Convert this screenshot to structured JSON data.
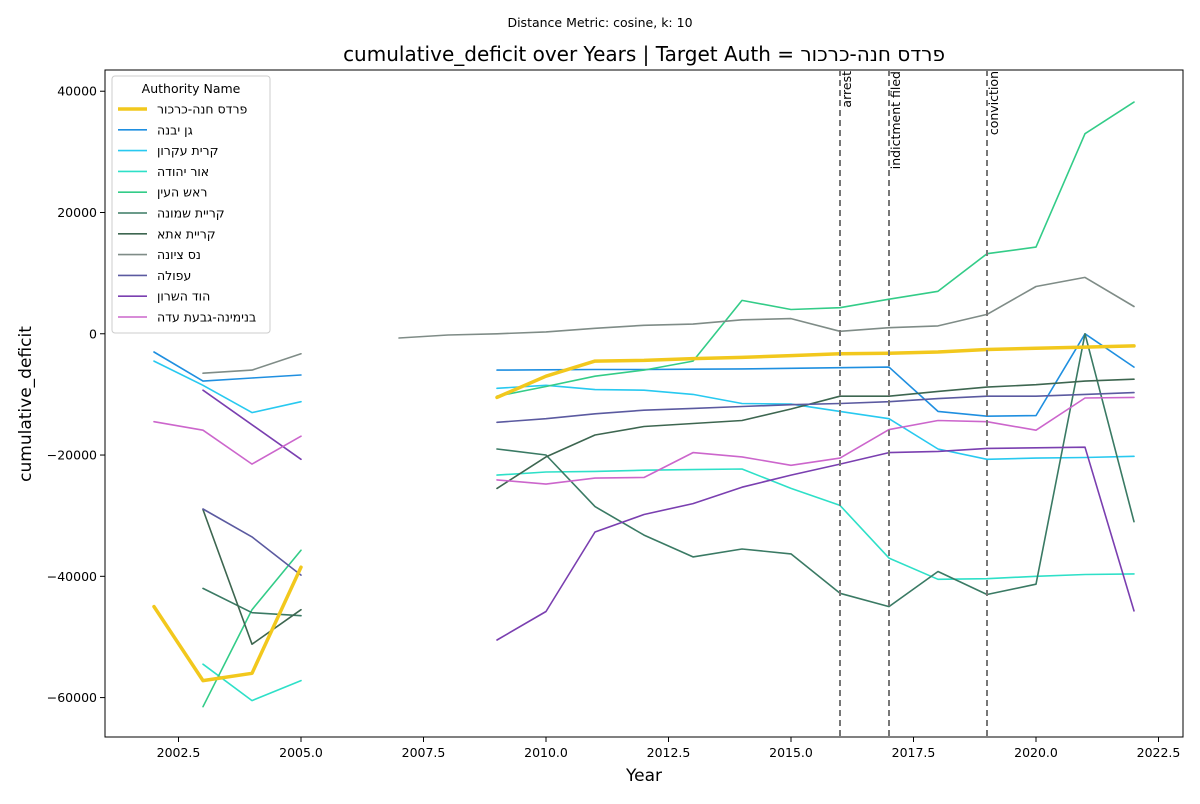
{
  "chart_data": {
    "type": "line",
    "suptitle": "Distance Metric: cosine, k: 10",
    "title": "cumulative_deficit over Years | Target Auth = פרדס חנה-כרכור",
    "xlabel": "Year",
    "ylabel": "cumulative_deficit",
    "xlim": [
      2001.0,
      2023.0
    ],
    "ylim": [
      -66500,
      43500
    ],
    "x_ticks": [
      2002.5,
      2005.0,
      2007.5,
      2010.0,
      2012.5,
      2015.0,
      2017.5,
      2020.0,
      2022.5
    ],
    "x_tick_labels": [
      "2002.5",
      "2005.0",
      "2007.5",
      "2010.0",
      "2012.5",
      "2015.0",
      "2017.5",
      "2020.0",
      "2022.5"
    ],
    "y_ticks": [
      -60000,
      -40000,
      -20000,
      0,
      20000,
      40000
    ],
    "y_tick_labels": [
      "−60000",
      "−40000",
      "−20000",
      "0",
      "20000",
      "40000"
    ],
    "grid": false,
    "legend": {
      "title": "Authority Name",
      "placement": "top-left"
    },
    "events": [
      {
        "x": 2016,
        "label": "arrest"
      },
      {
        "x": 2017,
        "label": "indictment filed"
      },
      {
        "x": 2019,
        "label": "conviction"
      }
    ],
    "series": [
      {
        "name": "פרדס חנה-כרכור",
        "color": "#f2c81d",
        "target": true,
        "segments": [
          [
            [
              2002,
              -45000
            ],
            [
              2003,
              -57200
            ],
            [
              2004,
              -56000
            ],
            [
              2005,
              -38500
            ]
          ],
          [
            [
              2009,
              -10500
            ],
            [
              2010,
              -7000
            ],
            [
              2011,
              -4500
            ],
            [
              2012,
              -4400
            ],
            [
              2013,
              -4100
            ],
            [
              2014,
              -3900
            ],
            [
              2015,
              -3600
            ],
            [
              2016,
              -3300
            ],
            [
              2017,
              -3200
            ],
            [
              2018,
              -3000
            ],
            [
              2019,
              -2600
            ],
            [
              2020,
              -2400
            ],
            [
              2021,
              -2200
            ],
            [
              2022,
              -2000
            ]
          ]
        ]
      },
      {
        "name": "גן יבנה",
        "color": "#1f8fe0",
        "segments": [
          [
            [
              2002,
              -3000
            ],
            [
              2003,
              -7800
            ],
            [
              2004,
              -7300
            ],
            [
              2005,
              -6800
            ]
          ],
          [
            [
              2009,
              -6000
            ],
            [
              2010,
              -5950
            ],
            [
              2011,
              -5900
            ],
            [
              2012,
              -5900
            ],
            [
              2013,
              -5850
            ],
            [
              2014,
              -5800
            ],
            [
              2015,
              -5700
            ],
            [
              2016,
              -5600
            ],
            [
              2017,
              -5500
            ],
            [
              2018,
              -12800
            ],
            [
              2019,
              -13600
            ],
            [
              2020,
              -13500
            ],
            [
              2021,
              0
            ],
            [
              2022,
              -5500
            ]
          ]
        ]
      },
      {
        "name": "קרית עקרון",
        "color": "#28c9f0",
        "segments": [
          [
            [
              2002,
              -4500
            ],
            [
              2003,
              -8500
            ],
            [
              2004,
              -13000
            ],
            [
              2005,
              -11200
            ]
          ],
          [
            [
              2009,
              -9000
            ],
            [
              2010,
              -8500
            ],
            [
              2011,
              -9200
            ],
            [
              2012,
              -9300
            ],
            [
              2013,
              -10000
            ],
            [
              2014,
              -11500
            ],
            [
              2015,
              -11600
            ],
            [
              2016,
              -12800
            ],
            [
              2017,
              -14000
            ],
            [
              2018,
              -19000
            ],
            [
              2019,
              -20700
            ],
            [
              2020,
              -20500
            ],
            [
              2021,
              -20400
            ],
            [
              2022,
              -20200
            ]
          ]
        ]
      },
      {
        "name": "אור יהודה",
        "color": "#2ee0c8",
        "segments": [
          [
            [
              2003,
              -54500
            ],
            [
              2004,
              -60500
            ],
            [
              2005,
              -57200
            ]
          ],
          [
            [
              2009,
              -23300
            ],
            [
              2010,
              -22800
            ],
            [
              2011,
              -22700
            ],
            [
              2012,
              -22500
            ],
            [
              2013,
              -22400
            ],
            [
              2014,
              -22300
            ],
            [
              2015,
              -25500
            ],
            [
              2016,
              -28300
            ],
            [
              2017,
              -37000
            ],
            [
              2018,
              -40500
            ],
            [
              2019,
              -40400
            ],
            [
              2020,
              -40000
            ],
            [
              2021,
              -39700
            ],
            [
              2022,
              -39600
            ]
          ]
        ]
      },
      {
        "name": "ראש העין",
        "color": "#33cc88",
        "segments": [
          [
            [
              2003,
              -61500
            ],
            [
              2004,
              -45500
            ],
            [
              2005,
              -35700
            ]
          ],
          [
            [
              2009,
              -10300
            ],
            [
              2010,
              -8700
            ],
            [
              2011,
              -7000
            ],
            [
              2012,
              -6000
            ],
            [
              2013,
              -4500
            ],
            [
              2014,
              5500
            ],
            [
              2015,
              4000
            ],
            [
              2016,
              4300
            ],
            [
              2017,
              5700
            ],
            [
              2018,
              7000
            ],
            [
              2019,
              13200
            ],
            [
              2020,
              14300
            ],
            [
              2021,
              33000
            ],
            [
              2022,
              38200
            ]
          ]
        ]
      },
      {
        "name": "קריית שמונה",
        "color": "#3a7a64",
        "segments": [
          [
            [
              2003,
              -42000
            ],
            [
              2004,
              -46000
            ],
            [
              2005,
              -46500
            ]
          ],
          [
            [
              2009,
              -19000
            ],
            [
              2010,
              -20000
            ],
            [
              2011,
              -28500
            ],
            [
              2012,
              -33200
            ],
            [
              2013,
              -36800
            ],
            [
              2014,
              -35500
            ],
            [
              2015,
              -36300
            ],
            [
              2016,
              -42800
            ],
            [
              2017,
              -45000
            ],
            [
              2018,
              -39200
            ],
            [
              2019,
              -43000
            ],
            [
              2020,
              -41300
            ],
            [
              2021,
              0
            ],
            [
              2022,
              -31000
            ]
          ]
        ]
      },
      {
        "name": "קריית אתא",
        "color": "#3d6650",
        "segments": [
          [
            [
              2003,
              -29000
            ],
            [
              2004,
              -51200
            ],
            [
              2005,
              -45500
            ]
          ],
          [
            [
              2009,
              -25500
            ],
            [
              2010,
              -20300
            ],
            [
              2011,
              -16700
            ],
            [
              2012,
              -15300
            ],
            [
              2013,
              -14800
            ],
            [
              2014,
              -14300
            ],
            [
              2015,
              -12400
            ],
            [
              2016,
              -10300
            ],
            [
              2017,
              -10300
            ],
            [
              2018,
              -9500
            ],
            [
              2019,
              -8800
            ],
            [
              2020,
              -8400
            ],
            [
              2021,
              -7800
            ],
            [
              2022,
              -7500
            ]
          ]
        ]
      },
      {
        "name": "נס ציונה",
        "color": "#7f8c87",
        "segments": [
          [
            [
              2003,
              -6500
            ],
            [
              2004,
              -6000
            ],
            [
              2005,
              -3300
            ]
          ],
          [
            [
              2007,
              -700
            ],
            [
              2008,
              -200
            ],
            [
              2009,
              0
            ],
            [
              2010,
              300
            ],
            [
              2011,
              900
            ],
            [
              2012,
              1400
            ],
            [
              2013,
              1600
            ],
            [
              2014,
              2300
            ],
            [
              2015,
              2500
            ],
            [
              2016,
              400
            ],
            [
              2017,
              1000
            ],
            [
              2018,
              1300
            ],
            [
              2019,
              3200
            ],
            [
              2020,
              7800
            ],
            [
              2021,
              9300
            ],
            [
              2022,
              4500
            ]
          ]
        ]
      },
      {
        "name": "עפולה",
        "color": "#5b5aa0",
        "segments": [
          [
            [
              2003,
              -28900
            ],
            [
              2004,
              -33500
            ],
            [
              2005,
              -39800
            ]
          ],
          [
            [
              2009,
              -14600
            ],
            [
              2010,
              -14000
            ],
            [
              2011,
              -13200
            ],
            [
              2012,
              -12600
            ],
            [
              2013,
              -12300
            ],
            [
              2014,
              -12000
            ],
            [
              2015,
              -11700
            ],
            [
              2016,
              -11500
            ],
            [
              2017,
              -11200
            ],
            [
              2018,
              -10700
            ],
            [
              2019,
              -10300
            ],
            [
              2020,
              -10300
            ],
            [
              2021,
              -10000
            ],
            [
              2022,
              -9700
            ]
          ]
        ]
      },
      {
        "name": "הוד השרון",
        "color": "#7a3fb0",
        "segments": [
          [
            [
              2003,
              -9300
            ],
            [
              2005,
              -20700
            ]
          ],
          [
            [
              2009,
              -50500
            ],
            [
              2010,
              -45800
            ],
            [
              2011,
              -32700
            ],
            [
              2012,
              -29800
            ],
            [
              2013,
              -28000
            ],
            [
              2014,
              -25300
            ],
            [
              2015,
              -23300
            ],
            [
              2016,
              -21500
            ],
            [
              2017,
              -19600
            ],
            [
              2018,
              -19400
            ],
            [
              2019,
              -18900
            ],
            [
              2020,
              -18800
            ],
            [
              2021,
              -18700
            ],
            [
              2022,
              -45700
            ]
          ]
        ]
      },
      {
        "name": "בנימינה-גבעת עדה",
        "color": "#cc66cc",
        "segments": [
          [
            [
              2002,
              -14500
            ],
            [
              2003,
              -15900
            ],
            [
              2004,
              -21500
            ],
            [
              2005,
              -16900
            ]
          ],
          [
            [
              2009,
              -24100
            ],
            [
              2010,
              -24800
            ],
            [
              2011,
              -23800
            ],
            [
              2012,
              -23700
            ],
            [
              2013,
              -19600
            ],
            [
              2014,
              -20300
            ],
            [
              2015,
              -21700
            ],
            [
              2016,
              -20500
            ],
            [
              2017,
              -15800
            ],
            [
              2018,
              -14300
            ],
            [
              2019,
              -14500
            ],
            [
              2020,
              -15900
            ],
            [
              2021,
              -10600
            ],
            [
              2022,
              -10500
            ]
          ]
        ]
      }
    ]
  }
}
